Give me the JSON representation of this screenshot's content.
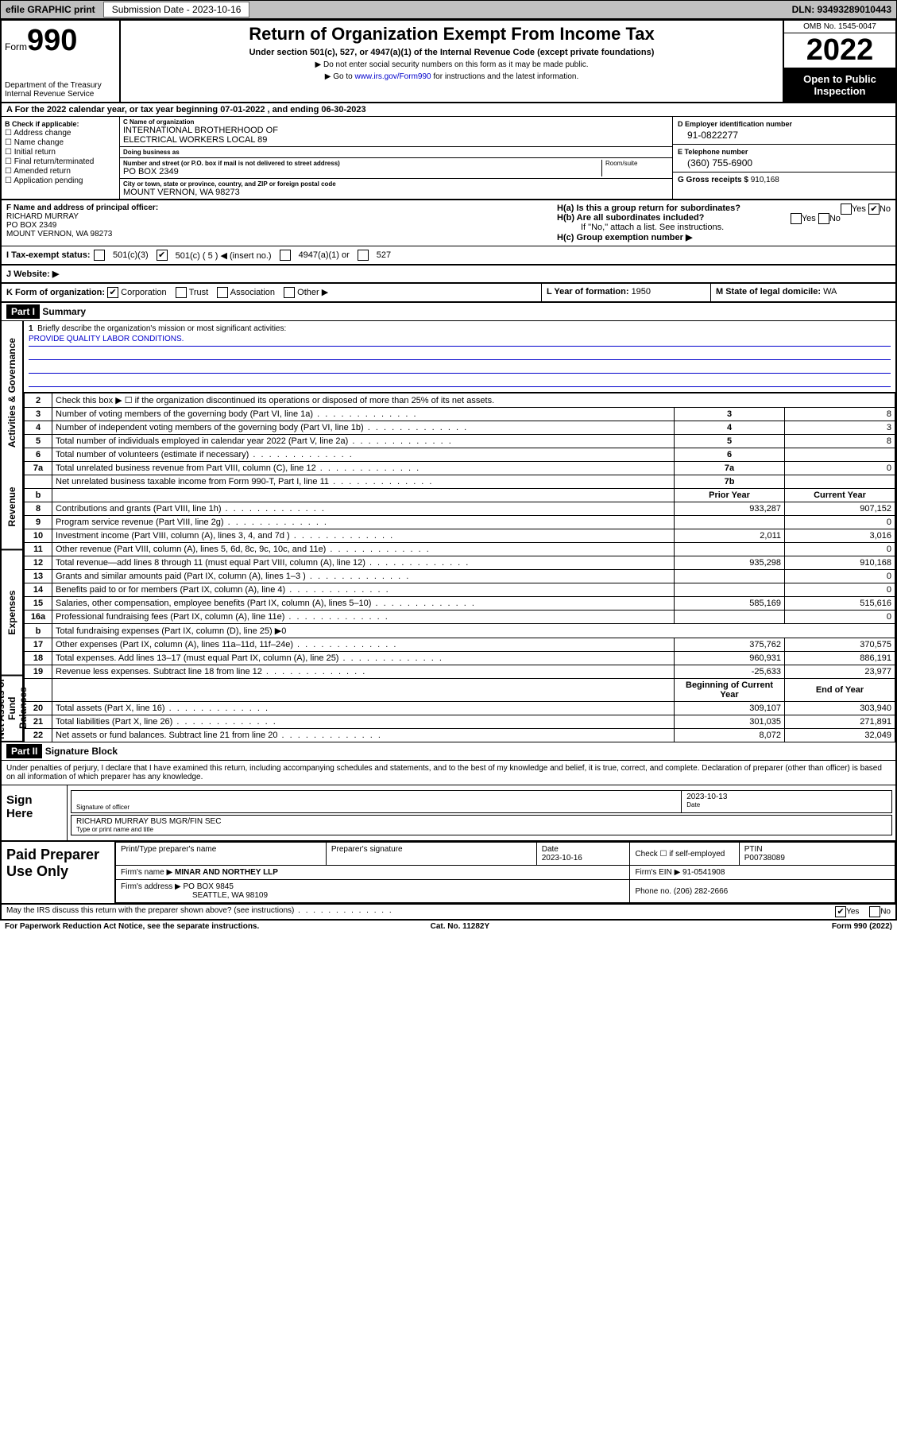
{
  "topbar": {
    "efile": "efile GRAPHIC print",
    "sub_label": "Submission Date - 2023-10-16",
    "dln": "DLN: 93493289010443"
  },
  "header": {
    "form_prefix": "Form",
    "form_no": "990",
    "dept": "Department of the Treasury\nInternal Revenue Service",
    "title": "Return of Organization Exempt From Income Tax",
    "sub1": "Under section 501(c), 527, or 4947(a)(1) of the Internal Revenue Code (except private foundations)",
    "sub2a": "▶ Do not enter social security numbers on this form as it may be made public.",
    "sub2b_pre": "▶ Go to ",
    "sub2b_link": "www.irs.gov/Form990",
    "sub2b_post": " for instructions and the latest information.",
    "omb": "OMB No. 1545-0047",
    "year": "2022",
    "open": "Open to Public Inspection"
  },
  "row_a": "A For the 2022 calendar year, or tax year beginning 07-01-2022    , and ending 06-30-2023",
  "col_b": {
    "hdr": "B Check if applicable:",
    "opts": [
      "Address change",
      "Name change",
      "Initial return",
      "Final return/terminated",
      "Amended return",
      "Application pending"
    ]
  },
  "col_c": {
    "name_lab": "C Name of organization",
    "name": "INTERNATIONAL BROTHERHOOD OF\nELECTRICAL WORKERS LOCAL 89",
    "dba_lab": "Doing business as",
    "dba": "",
    "addr_lab": "Number and street (or P.O. box if mail is not delivered to street address)",
    "room_lab": "Room/suite",
    "addr": "PO BOX 2349",
    "city_lab": "City or town, state or province, country, and ZIP or foreign postal code",
    "city": "MOUNT VERNON, WA  98273"
  },
  "col_de": {
    "d_lab": "D Employer identification number",
    "d_val": "91-0822277",
    "e_lab": "E Telephone number",
    "e_val": "(360) 755-6900",
    "g_lab": "G Gross receipts $ ",
    "g_val": "910,168"
  },
  "f": {
    "lab": "F  Name and address of principal officer:",
    "name": "RICHARD MURRAY",
    "addr1": "PO BOX 2349",
    "addr2": "MOUNT VERNON, WA  98273"
  },
  "h": {
    "a": "H(a)  Is this a group return for subordinates?",
    "a_yes": "Yes",
    "a_no": "No",
    "b": "H(b)  Are all subordinates included?",
    "b_note": "If \"No,\" attach a list. See instructions.",
    "c": "H(c)  Group exemption number ▶"
  },
  "i": {
    "lab": "I  Tax-exempt status:",
    "o1": "501(c)(3)",
    "o2": "501(c) ( 5 ) ◀ (insert no.)",
    "o3": "4947(a)(1) or",
    "o4": "527"
  },
  "j": {
    "lab": "J  Website: ▶",
    "val": ""
  },
  "k": {
    "lab": "K Form of organization:",
    "opts": [
      "Corporation",
      "Trust",
      "Association",
      "Other ▶"
    ]
  },
  "l": {
    "lab": "L Year of formation: ",
    "val": "1950"
  },
  "m": {
    "lab": "M State of legal domicile: ",
    "val": "WA"
  },
  "part1": {
    "hdr": "Part I",
    "title": "Summary"
  },
  "briefly": {
    "num": "1",
    "q": "Briefly describe the organization's mission or most significant activities:",
    "ans": "PROVIDE QUALITY LABOR CONDITIONS."
  },
  "line2": "Check this box ▶ ☐  if the organization discontinued its operations or disposed of more than 25% of its net assets.",
  "lines_3_7": [
    {
      "n": "3",
      "d": "Number of voting members of the governing body (Part VI, line 1a)",
      "b": "3",
      "v": "8"
    },
    {
      "n": "4",
      "d": "Number of independent voting members of the governing body (Part VI, line 1b)",
      "b": "4",
      "v": "3"
    },
    {
      "n": "5",
      "d": "Total number of individuals employed in calendar year 2022 (Part V, line 2a)",
      "b": "5",
      "v": "8"
    },
    {
      "n": "6",
      "d": "Total number of volunteers (estimate if necessary)",
      "b": "6",
      "v": ""
    },
    {
      "n": "7a",
      "d": "Total unrelated business revenue from Part VIII, column (C), line 12",
      "b": "7a",
      "v": "0"
    },
    {
      "n": "",
      "d": "Net unrelated business taxable income from Form 990-T, Part I, line 11",
      "b": "7b",
      "v": ""
    }
  ],
  "col_hdrs": {
    "b": "b",
    "prior": "Prior Year",
    "curr": "Current Year"
  },
  "revenue": [
    {
      "n": "8",
      "d": "Contributions and grants (Part VIII, line 1h)",
      "p": "933,287",
      "c": "907,152"
    },
    {
      "n": "9",
      "d": "Program service revenue (Part VIII, line 2g)",
      "p": "",
      "c": "0"
    },
    {
      "n": "10",
      "d": "Investment income (Part VIII, column (A), lines 3, 4, and 7d )",
      "p": "2,011",
      "c": "3,016"
    },
    {
      "n": "11",
      "d": "Other revenue (Part VIII, column (A), lines 5, 6d, 8c, 9c, 10c, and 11e)",
      "p": "",
      "c": "0"
    },
    {
      "n": "12",
      "d": "Total revenue—add lines 8 through 11 (must equal Part VIII, column (A), line 12)",
      "p": "935,298",
      "c": "910,168"
    }
  ],
  "expenses": [
    {
      "n": "13",
      "d": "Grants and similar amounts paid (Part IX, column (A), lines 1–3 )",
      "p": "",
      "c": "0"
    },
    {
      "n": "14",
      "d": "Benefits paid to or for members (Part IX, column (A), line 4)",
      "p": "",
      "c": "0"
    },
    {
      "n": "15",
      "d": "Salaries, other compensation, employee benefits (Part IX, column (A), lines 5–10)",
      "p": "585,169",
      "c": "515,616"
    },
    {
      "n": "16a",
      "d": "Professional fundraising fees (Part IX, column (A), line 11e)",
      "p": "",
      "c": "0"
    },
    {
      "n": "b",
      "d": "Total fundraising expenses (Part IX, column (D), line 25) ▶0",
      "p": "—",
      "c": "—"
    },
    {
      "n": "17",
      "d": "Other expenses (Part IX, column (A), lines 11a–11d, 11f–24e)",
      "p": "375,762",
      "c": "370,575"
    },
    {
      "n": "18",
      "d": "Total expenses. Add lines 13–17 (must equal Part IX, column (A), line 25)",
      "p": "960,931",
      "c": "886,191"
    },
    {
      "n": "19",
      "d": "Revenue less expenses. Subtract line 18 from line 12",
      "p": "-25,633",
      "c": "23,977"
    }
  ],
  "net_hdrs": {
    "b": "Beginning of Current Year",
    "e": "End of Year"
  },
  "net": [
    {
      "n": "20",
      "d": "Total assets (Part X, line 16)",
      "p": "309,107",
      "c": "303,940"
    },
    {
      "n": "21",
      "d": "Total liabilities (Part X, line 26)",
      "p": "301,035",
      "c": "271,891"
    },
    {
      "n": "22",
      "d": "Net assets or fund balances. Subtract line 21 from line 20",
      "p": "8,072",
      "c": "32,049"
    }
  ],
  "part2": {
    "hdr": "Part II",
    "title": "Signature Block"
  },
  "disclaimer": "Under penalties of perjury, I declare that I have examined this return, including accompanying schedules and statements, and to the best of my knowledge and belief, it is true, correct, and complete. Declaration of preparer (other than officer) is based on all information of which preparer has any knowledge.",
  "sign": {
    "left": "Sign Here",
    "sig_lab": "Signature of officer",
    "date_lab": "Date",
    "date": "2023-10-13",
    "name": "RICHARD MURRAY BUS MGR/FIN SEC",
    "name_lab": "Type or print name and title"
  },
  "paid": {
    "left": "Paid Preparer Use Only",
    "h1": "Print/Type preparer's name",
    "h2": "Preparer's signature",
    "h3": "Date",
    "h3v": "2023-10-16",
    "h4": "Check ☐ if self-employed",
    "h5": "PTIN",
    "h5v": "P00738089",
    "firm_lab": "Firm's name    ▶",
    "firm": "MINAR AND NORTHEY LLP",
    "ein_lab": "Firm's EIN ▶ ",
    "ein": "91-0541908",
    "addr_lab": "Firm's address ▶",
    "addr1": "PO BOX 9845",
    "addr2": "SEATTLE, WA  98109",
    "phone_lab": "Phone no. ",
    "phone": "(206) 282-2666"
  },
  "foot": {
    "q": "May the IRS discuss this return with the preparer shown above? (see instructions)",
    "yes": "Yes",
    "no": "No",
    "pra": "For Paperwork Reduction Act Notice, see the separate instructions.",
    "cat": "Cat. No. 11282Y",
    "form": "Form 990 (2022)"
  },
  "side_labels": {
    "ag": "Activities & Governance",
    "rev": "Revenue",
    "exp": "Expenses",
    "net": "Net Assets or Fund Balances"
  }
}
